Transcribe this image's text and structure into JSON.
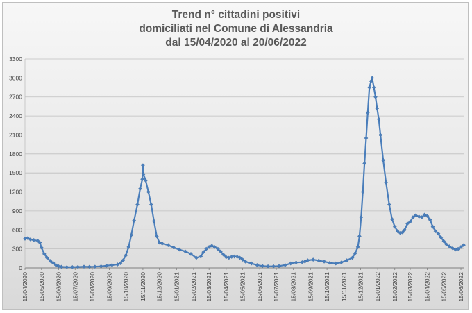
{
  "chart_data": {
    "type": "line",
    "title": [
      "Trend n° cittadini positivi",
      "domiciliati nel Comune di Alessandria",
      "dal 15/04/2020 al 20/06/2022"
    ],
    "xlabel": "",
    "ylabel": "",
    "ylim": [
      0,
      3300
    ],
    "yticks": [
      0,
      300,
      600,
      900,
      1200,
      1500,
      1800,
      2100,
      2400,
      2700,
      3000,
      3300
    ],
    "xticks": [
      "15/04/2020",
      "15/05/2020",
      "15/06/2020",
      "15/07/2020",
      "15/08/2020",
      "15/09/2020",
      "15/10/2020",
      "15/11/2020",
      "15/12/2020",
      "15/01/2021",
      "15/02/2021",
      "15/03/2021",
      "15/04/2021",
      "15/05/2021",
      "15/06/2021",
      "15/07/2021",
      "15/08/2021",
      "15/09/2021",
      "15/10/2021",
      "15/11/2021",
      "15/12/2021",
      "15/01/2022",
      "15/02/2022",
      "15/03/2022",
      "15/04/2022",
      "15/05/2022",
      "15/06/2022"
    ],
    "x_range": [
      "2020-04-15",
      "2022-06-20"
    ],
    "grid": true,
    "legend": "none",
    "color": "#4a7ebb",
    "marker": "diamond",
    "series": [
      {
        "points": [
          [
            "2020-04-15",
            460
          ],
          [
            "2020-04-20",
            470
          ],
          [
            "2020-04-25",
            450
          ],
          [
            "2020-05-01",
            440
          ],
          [
            "2020-05-08",
            430
          ],
          [
            "2020-05-12",
            400
          ],
          [
            "2020-05-15",
            320
          ],
          [
            "2020-05-20",
            220
          ],
          [
            "2020-05-25",
            160
          ],
          [
            "2020-05-31",
            110
          ],
          [
            "2020-06-05",
            80
          ],
          [
            "2020-06-10",
            45
          ],
          [
            "2020-06-15",
            25
          ],
          [
            "2020-06-20",
            18
          ],
          [
            "2020-06-30",
            12
          ],
          [
            "2020-07-10",
            12
          ],
          [
            "2020-07-20",
            15
          ],
          [
            "2020-07-31",
            20
          ],
          [
            "2020-08-10",
            18
          ],
          [
            "2020-08-20",
            20
          ],
          [
            "2020-08-31",
            25
          ],
          [
            "2020-09-10",
            35
          ],
          [
            "2020-09-20",
            45
          ],
          [
            "2020-09-30",
            55
          ],
          [
            "2020-10-05",
            75
          ],
          [
            "2020-10-10",
            120
          ],
          [
            "2020-10-15",
            200
          ],
          [
            "2020-10-20",
            330
          ],
          [
            "2020-10-25",
            520
          ],
          [
            "2020-10-30",
            750
          ],
          [
            "2020-11-05",
            1000
          ],
          [
            "2020-11-10",
            1250
          ],
          [
            "2020-11-14",
            1400
          ],
          [
            "2020-11-15",
            1620
          ],
          [
            "2020-11-16",
            1480
          ],
          [
            "2020-11-20",
            1380
          ],
          [
            "2020-11-25",
            1200
          ],
          [
            "2020-11-30",
            1000
          ],
          [
            "2020-12-05",
            740
          ],
          [
            "2020-12-10",
            500
          ],
          [
            "2020-12-15",
            400
          ],
          [
            "2020-12-20",
            385
          ],
          [
            "2020-12-31",
            360
          ],
          [
            "2021-01-10",
            320
          ],
          [
            "2021-01-20",
            290
          ],
          [
            "2021-01-31",
            260
          ],
          [
            "2021-02-10",
            220
          ],
          [
            "2021-02-20",
            160
          ],
          [
            "2021-02-28",
            180
          ],
          [
            "2021-03-05",
            250
          ],
          [
            "2021-03-10",
            300
          ],
          [
            "2021-03-15",
            330
          ],
          [
            "2021-03-20",
            350
          ],
          [
            "2021-03-25",
            330
          ],
          [
            "2021-03-31",
            300
          ],
          [
            "2021-04-05",
            260
          ],
          [
            "2021-04-10",
            210
          ],
          [
            "2021-04-15",
            170
          ],
          [
            "2021-04-20",
            160
          ],
          [
            "2021-04-25",
            175
          ],
          [
            "2021-04-30",
            180
          ],
          [
            "2021-05-05",
            175
          ],
          [
            "2021-05-10",
            160
          ],
          [
            "2021-05-15",
            130
          ],
          [
            "2021-05-20",
            100
          ],
          [
            "2021-05-31",
            70
          ],
          [
            "2021-06-10",
            45
          ],
          [
            "2021-06-20",
            30
          ],
          [
            "2021-06-30",
            25
          ],
          [
            "2021-07-10",
            25
          ],
          [
            "2021-07-20",
            30
          ],
          [
            "2021-07-31",
            45
          ],
          [
            "2021-08-10",
            70
          ],
          [
            "2021-08-20",
            85
          ],
          [
            "2021-08-31",
            90
          ],
          [
            "2021-09-05",
            100
          ],
          [
            "2021-09-10",
            120
          ],
          [
            "2021-09-20",
            130
          ],
          [
            "2021-09-30",
            115
          ],
          [
            "2021-10-10",
            100
          ],
          [
            "2021-10-20",
            80
          ],
          [
            "2021-10-31",
            70
          ],
          [
            "2021-11-10",
            85
          ],
          [
            "2021-11-20",
            120
          ],
          [
            "2021-11-30",
            160
          ],
          [
            "2021-12-05",
            230
          ],
          [
            "2021-12-10",
            330
          ],
          [
            "2021-12-13",
            500
          ],
          [
            "2021-12-16",
            800
          ],
          [
            "2021-12-19",
            1200
          ],
          [
            "2021-12-22",
            1650
          ],
          [
            "2021-12-25",
            2050
          ],
          [
            "2021-12-28",
            2450
          ],
          [
            "2021-12-31",
            2850
          ],
          [
            "2022-01-03",
            2950
          ],
          [
            "2022-01-05",
            3000
          ],
          [
            "2022-01-08",
            2850
          ],
          [
            "2022-01-11",
            2700
          ],
          [
            "2022-01-14",
            2520
          ],
          [
            "2022-01-17",
            2350
          ],
          [
            "2022-01-20",
            2100
          ],
          [
            "2022-01-25",
            1700
          ],
          [
            "2022-01-30",
            1350
          ],
          [
            "2022-02-05",
            1000
          ],
          [
            "2022-02-10",
            770
          ],
          [
            "2022-02-15",
            650
          ],
          [
            "2022-02-20",
            580
          ],
          [
            "2022-02-25",
            550
          ],
          [
            "2022-03-01",
            560
          ],
          [
            "2022-03-05",
            600
          ],
          [
            "2022-03-10",
            700
          ],
          [
            "2022-03-15",
            730
          ],
          [
            "2022-03-20",
            800
          ],
          [
            "2022-03-25",
            830
          ],
          [
            "2022-03-31",
            810
          ],
          [
            "2022-04-05",
            800
          ],
          [
            "2022-04-10",
            840
          ],
          [
            "2022-04-15",
            820
          ],
          [
            "2022-04-20",
            760
          ],
          [
            "2022-04-25",
            650
          ],
          [
            "2022-04-30",
            580
          ],
          [
            "2022-05-05",
            540
          ],
          [
            "2022-05-10",
            480
          ],
          [
            "2022-05-15",
            420
          ],
          [
            "2022-05-20",
            370
          ],
          [
            "2022-05-25",
            340
          ],
          [
            "2022-05-31",
            310
          ],
          [
            "2022-06-05",
            290
          ],
          [
            "2022-06-10",
            300
          ],
          [
            "2022-06-15",
            330
          ],
          [
            "2022-06-20",
            360
          ]
        ]
      }
    ]
  }
}
